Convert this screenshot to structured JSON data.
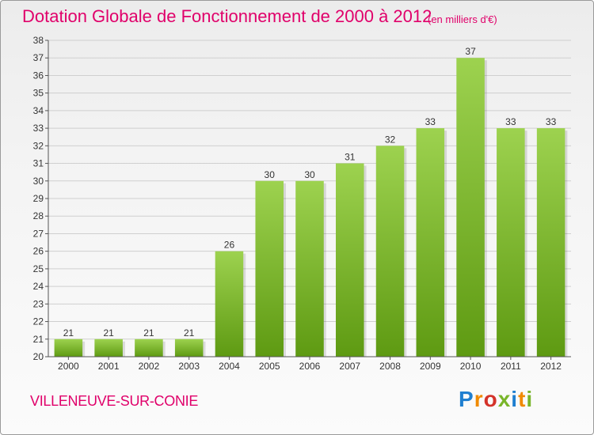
{
  "header": {
    "title": "Dotation Globale de Fonctionnement de 2000 à 2012",
    "subtitle": "(en milliers d'€)"
  },
  "footer": {
    "commune": "VILLENEUVE-SUR-CONIE",
    "brand": "Proxiti",
    "brand_colors": [
      "#1f7fd0",
      "#f08a00",
      "#d4332a",
      "#79b52a",
      "#1f7fd0",
      "#f08a00",
      "#79b52a"
    ]
  },
  "colors": {
    "title": "#e0006a",
    "bar_light": "#9dd24f",
    "bar_dark": "#5e9a12",
    "grid": "#cfcfcf",
    "axis": "#555555"
  },
  "chart_data": {
    "type": "bar",
    "categories": [
      "2000",
      "2001",
      "2002",
      "2003",
      "2004",
      "2005",
      "2006",
      "2007",
      "2008",
      "2009",
      "2010",
      "2011",
      "2012"
    ],
    "values": [
      21,
      21,
      21,
      21,
      26,
      30,
      30,
      31,
      32,
      33,
      37,
      33,
      33
    ],
    "data_labels": [
      "21",
      "21",
      "21",
      "21",
      "26",
      "30",
      "30",
      "31",
      "32",
      "33",
      "37",
      "33",
      "33"
    ],
    "title": "Dotation Globale de Fonctionnement de 2000 à 2012",
    "subtitle": "(en milliers d'€)",
    "xlabel": "",
    "ylabel": "",
    "ylim": [
      20,
      38
    ],
    "yticks": [
      "20",
      "21",
      "22",
      "23",
      "24",
      "25",
      "26",
      "27",
      "28",
      "29",
      "30",
      "31",
      "32",
      "33",
      "34",
      "35",
      "36",
      "37",
      "38"
    ],
    "grid": true,
    "legend": "none"
  }
}
